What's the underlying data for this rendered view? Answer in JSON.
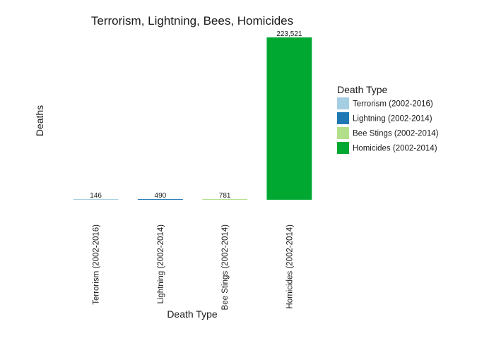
{
  "chart_data": {
    "type": "bar",
    "title": "Terrorism, Lightning, Bees, Homicides",
    "xlabel": "Death Type",
    "ylabel": "Deaths",
    "categories": [
      "Terrorism (2002-2016)",
      "Lightning (2002-2014)",
      "Bee Stings (2002-2014)",
      "Homicides (2002-2014)"
    ],
    "values": [
      146,
      490,
      781,
      223521
    ],
    "data_labels": [
      "146",
      "490",
      "781",
      "223,521"
    ],
    "colors": [
      "#a6cee3",
      "#1f78b4",
      "#b2df8a",
      "#00a832"
    ],
    "ylim": [
      0,
      223521
    ],
    "grid": false,
    "legend": {
      "title": "Death Type",
      "placement": "right",
      "entries": [
        "Terrorism (2002-2016)",
        "Lightning (2002-2014)",
        "Bee Stings (2002-2014)",
        "Homicides (2002-2014)"
      ]
    }
  }
}
